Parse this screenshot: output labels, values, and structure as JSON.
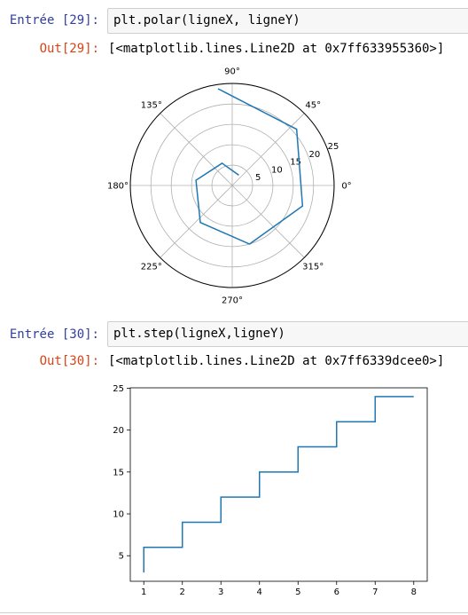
{
  "cells": [
    {
      "in_prompt": "Entrée [29]:",
      "code": "plt.polar(ligneX, ligneY)",
      "out_prompt": "Out[29]:",
      "output": "[<matplotlib.lines.Line2D at 0x7ff633955360>]"
    },
    {
      "in_prompt": "Entrée [30]:",
      "code": "plt.step(ligneX,ligneY)",
      "out_prompt": "Out[30]:",
      "output": "[<matplotlib.lines.Line2D at 0x7ff6339dcee0>]"
    }
  ],
  "colors": {
    "line": "#1f77b4",
    "prompt_in": "#303f9f",
    "prompt_out": "#d84315"
  },
  "chart_data": [
    {
      "type": "line",
      "projection": "polar",
      "theta": [
        1,
        2,
        3,
        4,
        5,
        6,
        7,
        8
      ],
      "r": [
        3,
        6,
        9,
        12,
        15,
        18,
        21,
        24
      ],
      "theta_unit": "radians",
      "r_ticks": [
        "5",
        "10",
        "15",
        "20",
        "25"
      ],
      "r_tick_values": [
        5,
        10,
        15,
        20,
        25
      ],
      "rlim": [
        0,
        25.05
      ],
      "theta_ticks": [
        "0°",
        "45°",
        "90°",
        "135°",
        "180°",
        "225°",
        "270°",
        "315°"
      ],
      "theta_tick_values": [
        0,
        45,
        90,
        135,
        180,
        225,
        270,
        315
      ],
      "grid": true
    },
    {
      "type": "line",
      "drawstyle": "steps-pre",
      "x": [
        1,
        2,
        3,
        4,
        5,
        6,
        7,
        8
      ],
      "y": [
        3,
        6,
        9,
        12,
        15,
        18,
        21,
        24
      ],
      "xlim": [
        0.65,
        8.35
      ],
      "ylim": [
        1.95,
        25.05
      ],
      "x_ticks": [
        1,
        2,
        3,
        4,
        5,
        6,
        7,
        8
      ],
      "y_ticks": [
        5,
        10,
        15,
        20,
        25
      ],
      "grid": false
    }
  ]
}
